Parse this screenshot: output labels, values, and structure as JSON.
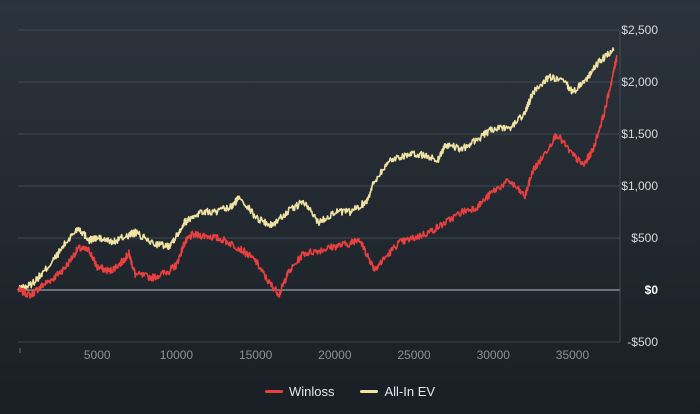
{
  "chart_data": {
    "type": "line",
    "xlabel": "",
    "ylabel": "",
    "xlim": [
      0,
      38000
    ],
    "ylim": [
      -500,
      2500
    ],
    "x_ticks": [
      5000,
      10000,
      15000,
      20000,
      25000,
      30000,
      35000
    ],
    "x_tick_labels": [
      "5000",
      "10000",
      "15000",
      "20000",
      "25000",
      "30000",
      "35000"
    ],
    "y_ticks": [
      2500,
      2000,
      1500,
      1000,
      500,
      0,
      -500
    ],
    "y_tick_labels": [
      "$2,500",
      "$2,000",
      "$1,500",
      "$1,000",
      "$500",
      "$0",
      "-$500"
    ],
    "grid": true,
    "legend_position": "bottom-center",
    "series": [
      {
        "name": "Winloss",
        "color": "#e8403f",
        "points": [
          [
            0,
            0
          ],
          [
            800,
            -50
          ],
          [
            1500,
            40
          ],
          [
            2300,
            120
          ],
          [
            3000,
            220
          ],
          [
            3800,
            400
          ],
          [
            4500,
            380
          ],
          [
            5000,
            220
          ],
          [
            5800,
            180
          ],
          [
            6500,
            260
          ],
          [
            7000,
            350
          ],
          [
            7400,
            150
          ],
          [
            8500,
            120
          ],
          [
            9500,
            180
          ],
          [
            10000,
            240
          ],
          [
            10500,
            450
          ],
          [
            11000,
            530
          ],
          [
            12000,
            520
          ],
          [
            13000,
            480
          ],
          [
            14000,
            400
          ],
          [
            15000,
            280
          ],
          [
            15800,
            80
          ],
          [
            16500,
            -40
          ],
          [
            17000,
            150
          ],
          [
            18000,
            350
          ],
          [
            19000,
            380
          ],
          [
            20000,
            420
          ],
          [
            21000,
            450
          ],
          [
            21500,
            500
          ],
          [
            22000,
            350
          ],
          [
            22500,
            200
          ],
          [
            23000,
            280
          ],
          [
            24000,
            450
          ],
          [
            25000,
            500
          ],
          [
            26000,
            560
          ],
          [
            27000,
            650
          ],
          [
            28000,
            750
          ],
          [
            29000,
            800
          ],
          [
            30000,
            950
          ],
          [
            31000,
            1050
          ],
          [
            32000,
            900
          ],
          [
            32500,
            1150
          ],
          [
            33000,
            1250
          ],
          [
            34000,
            1500
          ],
          [
            35000,
            1300
          ],
          [
            35700,
            1200
          ],
          [
            36300,
            1350
          ],
          [
            37000,
            1700
          ],
          [
            37600,
            2100
          ],
          [
            37800,
            2250
          ]
        ]
      },
      {
        "name": "All-In EV",
        "color": "#efe2a2",
        "points": [
          [
            0,
            0
          ],
          [
            800,
            50
          ],
          [
            1500,
            150
          ],
          [
            2300,
            300
          ],
          [
            3000,
            450
          ],
          [
            3800,
            600
          ],
          [
            4500,
            480
          ],
          [
            5000,
            500
          ],
          [
            6000,
            460
          ],
          [
            7000,
            530
          ],
          [
            7400,
            550
          ],
          [
            8500,
            450
          ],
          [
            9500,
            420
          ],
          [
            10000,
            520
          ],
          [
            10500,
            650
          ],
          [
            11500,
            750
          ],
          [
            12500,
            750
          ],
          [
            13500,
            800
          ],
          [
            14000,
            900
          ],
          [
            15000,
            700
          ],
          [
            16000,
            620
          ],
          [
            17000,
            750
          ],
          [
            18000,
            850
          ],
          [
            19000,
            650
          ],
          [
            20000,
            750
          ],
          [
            21000,
            750
          ],
          [
            22000,
            850
          ],
          [
            22500,
            1050
          ],
          [
            23500,
            1250
          ],
          [
            24500,
            1300
          ],
          [
            25500,
            1300
          ],
          [
            26500,
            1250
          ],
          [
            27000,
            1400
          ],
          [
            28000,
            1350
          ],
          [
            29000,
            1450
          ],
          [
            30000,
            1550
          ],
          [
            31000,
            1550
          ],
          [
            32000,
            1700
          ],
          [
            32500,
            1900
          ],
          [
            33500,
            2050
          ],
          [
            34500,
            2000
          ],
          [
            35000,
            1900
          ],
          [
            36000,
            2050
          ],
          [
            36700,
            2200
          ],
          [
            37600,
            2300
          ]
        ]
      }
    ]
  }
}
